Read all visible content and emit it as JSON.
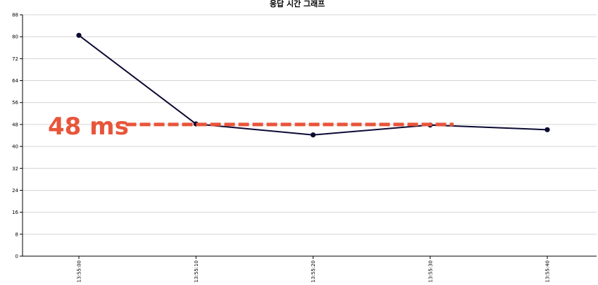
{
  "chart_data": {
    "type": "line",
    "title": "응답 시간 그래프",
    "xlabel": "",
    "ylabel": "",
    "ylim": [
      0,
      88
    ],
    "yticks": [
      0,
      8,
      16,
      24,
      32,
      40,
      48,
      56,
      64,
      72,
      80,
      88
    ],
    "categories": [
      "13:55:00",
      "13:55:10",
      "13:55:20",
      "13:55:30",
      "13:55:40"
    ],
    "series": [
      {
        "values": [
          80.5,
          48.2,
          44.2,
          47.8,
          46.1
        ],
        "color": "#0c0a33"
      }
    ],
    "grid": true,
    "reference_line": {
      "value": 48,
      "label": "48 ms",
      "color": "#e8553a",
      "from_index": 0.4,
      "to_index": 3.2
    }
  }
}
